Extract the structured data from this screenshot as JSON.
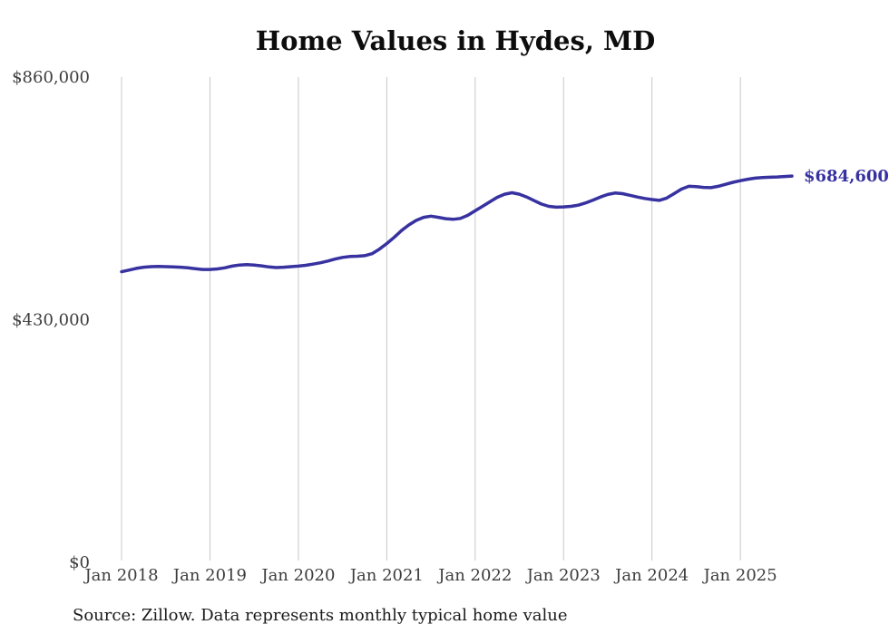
{
  "title": "Home Values in Hydes, MD",
  "source_note": "Source: Zillow. Data represents monthly typical home value",
  "colors": {
    "line": "#3732a0",
    "grid": "#c8c8c8",
    "axis_text": "#3d3d3d",
    "title_text": "#0d0d0d",
    "source_text": "#1a1a1a",
    "end_label_text": "#3732a0",
    "background": "#ffffff"
  },
  "chart_data": {
    "type": "line",
    "title": "Home Values in Hydes, MD",
    "xlabel": "",
    "ylabel": "",
    "ylim": [
      0,
      860000
    ],
    "grid": "vertical-only",
    "legend": "none",
    "frequency": "monthly",
    "x_start": "Jan 2018",
    "x_end": "Aug 2025",
    "last_value_label": "$684,600",
    "last_value": 684600,
    "y_ticks": [
      {
        "label": "$0",
        "value": 0
      },
      {
        "label": "$430,000",
        "value": 430000
      },
      {
        "label": "$860,000",
        "value": 860000
      }
    ],
    "x_ticks": [
      {
        "label": "Jan 2018",
        "month_index": 0
      },
      {
        "label": "Jan 2019",
        "month_index": 12
      },
      {
        "label": "Jan 2020",
        "month_index": 24
      },
      {
        "label": "Jan 2021",
        "month_index": 36
      },
      {
        "label": "Jan 2022",
        "month_index": 48
      },
      {
        "label": "Jan 2023",
        "month_index": 60
      },
      {
        "label": "Jan 2024",
        "month_index": 72
      },
      {
        "label": "Jan 2025",
        "month_index": 84
      }
    ],
    "months": [
      "2018-01",
      "2018-02",
      "2018-03",
      "2018-04",
      "2018-05",
      "2018-06",
      "2018-07",
      "2018-08",
      "2018-09",
      "2018-10",
      "2018-11",
      "2018-12",
      "2019-01",
      "2019-02",
      "2019-03",
      "2019-04",
      "2019-05",
      "2019-06",
      "2019-07",
      "2019-08",
      "2019-09",
      "2019-10",
      "2019-11",
      "2019-12",
      "2020-01",
      "2020-02",
      "2020-03",
      "2020-04",
      "2020-05",
      "2020-06",
      "2020-07",
      "2020-08",
      "2020-09",
      "2020-10",
      "2020-11",
      "2020-12",
      "2021-01",
      "2021-02",
      "2021-03",
      "2021-04",
      "2021-05",
      "2021-06",
      "2021-07",
      "2021-08",
      "2021-09",
      "2021-10",
      "2021-11",
      "2021-12",
      "2022-01",
      "2022-02",
      "2022-03",
      "2022-04",
      "2022-05",
      "2022-06",
      "2022-07",
      "2022-08",
      "2022-09",
      "2022-10",
      "2022-11",
      "2022-12",
      "2023-01",
      "2023-02",
      "2023-03",
      "2023-04",
      "2023-05",
      "2023-06",
      "2023-07",
      "2023-08",
      "2023-09",
      "2023-10",
      "2023-11",
      "2023-12",
      "2024-01",
      "2024-02",
      "2024-03",
      "2024-04",
      "2024-05",
      "2024-06",
      "2024-07",
      "2024-08",
      "2024-09",
      "2024-10",
      "2024-11",
      "2024-12",
      "2025-01",
      "2025-02",
      "2025-03",
      "2025-04",
      "2025-05",
      "2025-06",
      "2025-07",
      "2025-08"
    ],
    "values": [
      515000,
      518000,
      521000,
      523000,
      524000,
      524500,
      524000,
      523500,
      523000,
      522000,
      520500,
      519000,
      519000,
      520000,
      522000,
      525000,
      527000,
      527500,
      527000,
      525500,
      523500,
      522500,
      523000,
      524000,
      525000,
      526500,
      528500,
      531000,
      534000,
      537500,
      540500,
      542000,
      542500,
      543500,
      547000,
      555000,
      565000,
      576000,
      588000,
      598000,
      606000,
      611500,
      613500,
      611500,
      609000,
      608000,
      609500,
      615000,
      623000,
      631000,
      639000,
      647000,
      652500,
      655000,
      652500,
      647500,
      641000,
      635000,
      631000,
      629500,
      630000,
      631000,
      633000,
      637000,
      642000,
      647500,
      652000,
      654500,
      653500,
      650500,
      647500,
      645000,
      643000,
      641500,
      645500,
      653500,
      661500,
      666500,
      666000,
      664500,
      664000,
      666500,
      670000,
      673500,
      676500,
      679000,
      681000,
      682000,
      682500,
      683000,
      683800,
      684600
    ]
  }
}
